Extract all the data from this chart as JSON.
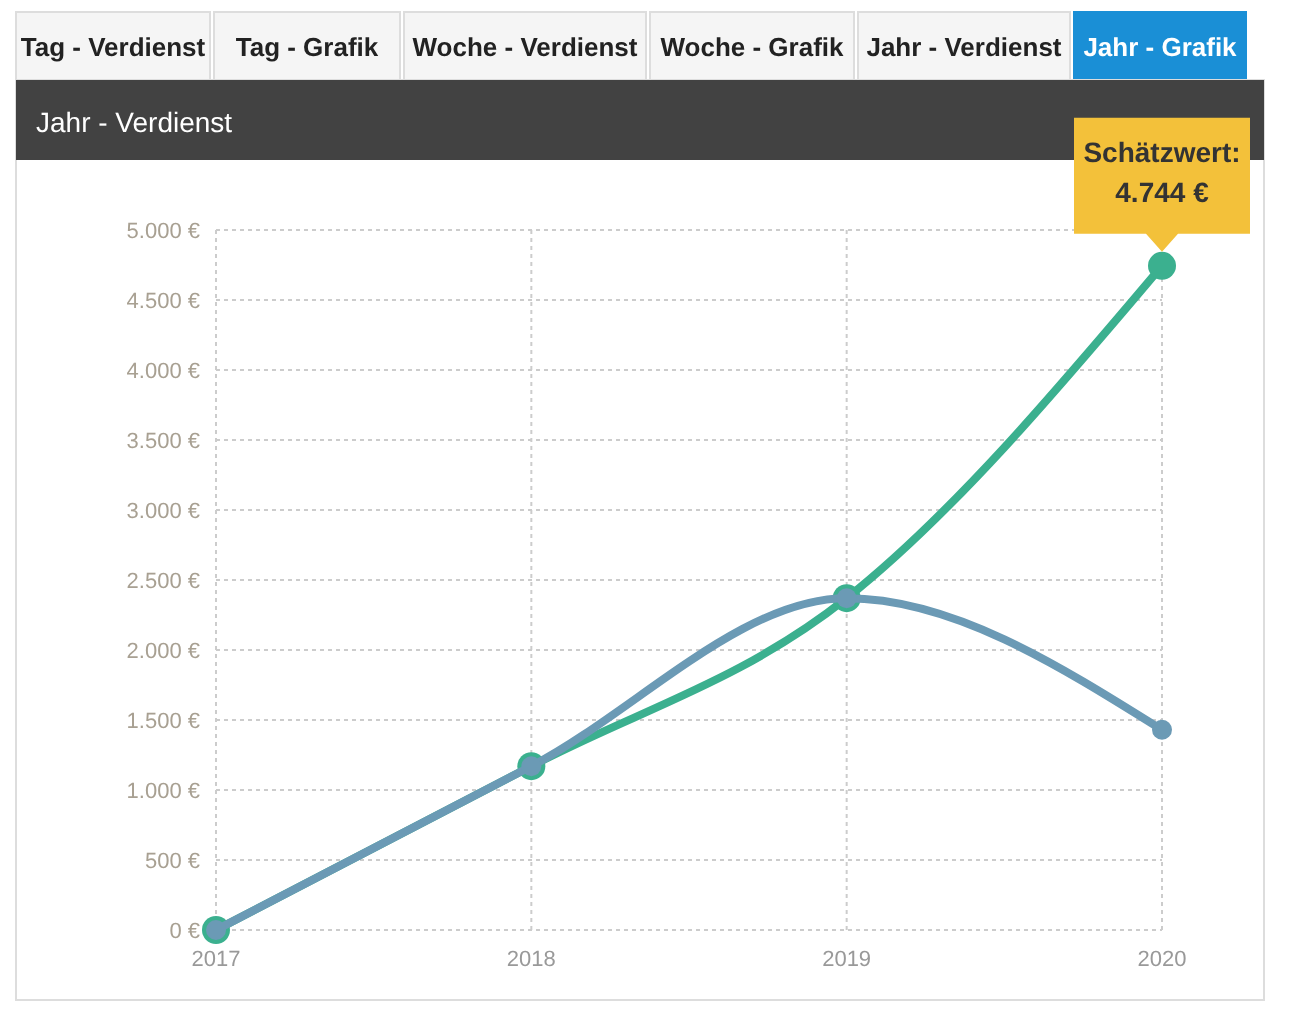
{
  "chart_data": {
    "type": "line",
    "title": "Jahr - Verdienst",
    "categories": [
      "2017",
      "2018",
      "2019",
      "2020"
    ],
    "series": [
      {
        "color": "#3bb08f",
        "values": [
          0,
          1170,
          2370,
          4744
        ]
      },
      {
        "color": "#6b9ab5",
        "values": [
          0,
          1170,
          2370,
          1430
        ]
      }
    ],
    "ylim": [
      0,
      5000
    ],
    "yticks": [
      {
        "value": 0,
        "label": "0 €"
      },
      {
        "value": 500,
        "label": "500 €"
      },
      {
        "value": 1000,
        "label": "1.000 €"
      },
      {
        "value": 1500,
        "label": "1.500 €"
      },
      {
        "value": 2000,
        "label": "2.000 €"
      },
      {
        "value": 2500,
        "label": "2.500 €"
      },
      {
        "value": 3000,
        "label": "3.000 €"
      },
      {
        "value": 3500,
        "label": "3.500 €"
      },
      {
        "value": 4000,
        "label": "4.000 €"
      },
      {
        "value": 4500,
        "label": "4.500 €"
      },
      {
        "value": 5000,
        "label": "5.000 €"
      }
    ],
    "grid": true,
    "marker": "circle",
    "line_style": "solid",
    "annotations": [
      "Tag - Verdienst",
      "Tag - Grafik",
      "Woche - Verdienst",
      "Woche - Grafik",
      "Jahr - Verdienst",
      "Jahr - Grafik",
      {
        "text": "Schätzwert:\n4.744 €",
        "x": "2020",
        "y": 4744
      }
    ]
  }
}
